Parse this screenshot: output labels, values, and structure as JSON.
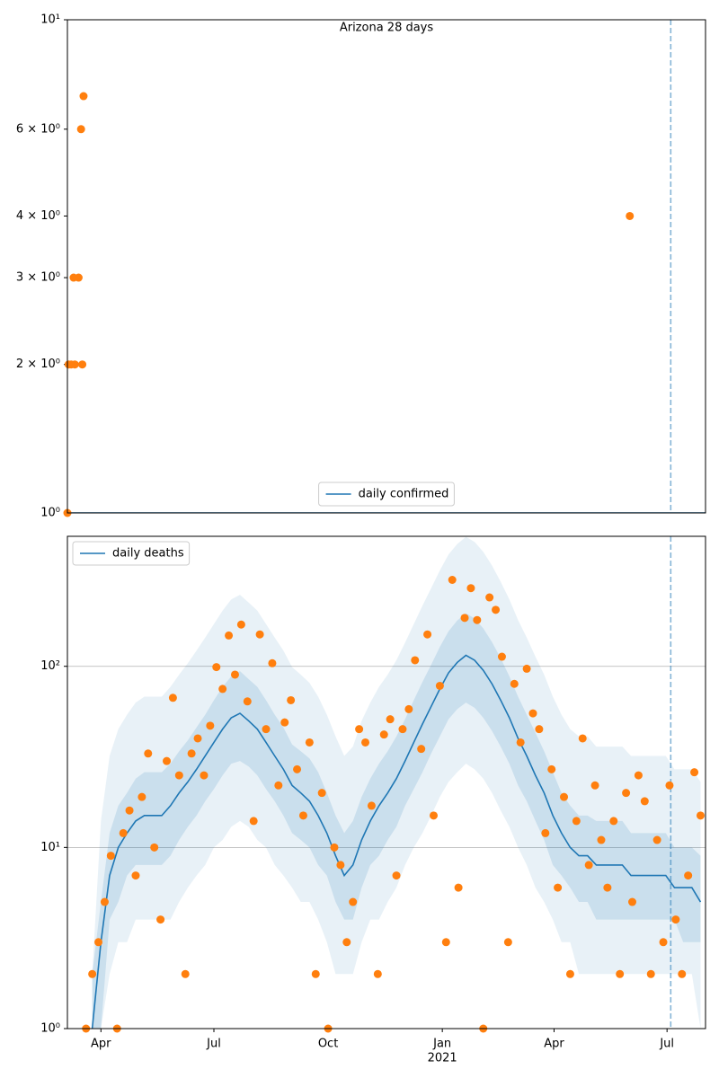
{
  "chart_data": [
    {
      "type": "line",
      "title": "Arizona 28 days",
      "yscale": "log",
      "grid": false,
      "legend": "lower center",
      "xlim": [
        "2020-03-05",
        "2021-08-01"
      ],
      "ylim": [
        1,
        10
      ],
      "yticks": [
        {
          "value": 1,
          "label": "10⁰"
        },
        {
          "value": 2,
          "label": "2 × 10⁰"
        },
        {
          "value": 3,
          "label": "3 × 10⁰"
        },
        {
          "value": 4,
          "label": "4 × 10⁰"
        },
        {
          "value": 6,
          "label": "6 × 10⁰"
        },
        {
          "value": 10,
          "label": "10¹"
        }
      ],
      "vline": "2021-07-04",
      "vline_color": "#1f77b4",
      "series": [
        {
          "name": "daily confirmed",
          "color": "#1f77b4",
          "x": [
            "2020-03-05",
            "2021-08-01"
          ],
          "values": [
            1,
            1
          ]
        }
      ],
      "points": {
        "color": "#ff7f0e",
        "x": [
          "2020-03-05",
          "2020-03-06",
          "2020-03-08",
          "2020-03-10",
          "2020-03-11",
          "2020-03-14",
          "2020-03-16",
          "2020-03-17",
          "2020-03-18",
          "2021-06-01"
        ],
        "values": [
          1,
          2,
          2,
          3,
          2,
          3,
          6,
          2,
          7,
          4
        ]
      }
    },
    {
      "type": "line",
      "yscale": "log",
      "grid": true,
      "legend": "upper left",
      "xlim": [
        "2020-03-05",
        "2021-08-01"
      ],
      "ylim": [
        1,
        522
      ],
      "yticks": [
        {
          "value": 1,
          "label": "10⁰"
        },
        {
          "value": 10,
          "label": "10¹"
        },
        {
          "value": 100,
          "label": "10²"
        }
      ],
      "xticks": [
        {
          "value": "2020-04-01",
          "label": "Apr"
        },
        {
          "value": "2020-07-01",
          "label": "Jul"
        },
        {
          "value": "2020-10-01",
          "label": "Oct"
        },
        {
          "value": "2021-01-01",
          "label": "Jan",
          "sublabel": "2021"
        },
        {
          "value": "2021-04-01",
          "label": "Apr"
        },
        {
          "value": "2021-07-01",
          "label": "Jul"
        }
      ],
      "vline": "2021-07-04",
      "vline_color": "#1f77b4",
      "series": [
        {
          "name": "daily deaths",
          "color": "#1f77b4",
          "x": [
            "2020-03-25",
            "2020-04-01",
            "2020-04-08",
            "2020-04-15",
            "2020-04-22",
            "2020-04-29",
            "2020-05-06",
            "2020-05-13",
            "2020-05-20",
            "2020-05-27",
            "2020-06-03",
            "2020-06-10",
            "2020-06-17",
            "2020-06-24",
            "2020-07-01",
            "2020-07-08",
            "2020-07-15",
            "2020-07-22",
            "2020-07-29",
            "2020-08-05",
            "2020-08-12",
            "2020-08-19",
            "2020-08-26",
            "2020-09-02",
            "2020-09-09",
            "2020-09-16",
            "2020-09-23",
            "2020-09-30",
            "2020-10-07",
            "2020-10-14",
            "2020-10-21",
            "2020-10-28",
            "2020-11-04",
            "2020-11-11",
            "2020-11-18",
            "2020-11-25",
            "2020-12-02",
            "2020-12-09",
            "2020-12-16",
            "2020-12-23",
            "2020-12-30",
            "2021-01-06",
            "2021-01-13",
            "2021-01-20",
            "2021-01-27",
            "2021-02-03",
            "2021-02-10",
            "2021-02-17",
            "2021-02-24",
            "2021-03-03",
            "2021-03-10",
            "2021-03-17",
            "2021-03-24",
            "2021-03-31",
            "2021-04-07",
            "2021-04-14",
            "2021-04-21",
            "2021-04-28",
            "2021-05-05",
            "2021-05-12",
            "2021-05-19",
            "2021-05-26",
            "2021-06-02",
            "2021-06-09",
            "2021-06-16",
            "2021-06-23",
            "2021-06-30",
            "2021-07-07",
            "2021-07-14",
            "2021-07-21",
            "2021-07-28"
          ],
          "values": [
            1,
            3,
            7,
            10,
            12,
            14,
            15,
            15,
            15,
            17,
            20,
            23,
            27,
            32,
            38,
            45,
            52,
            55,
            50,
            45,
            38,
            32,
            27,
            22,
            20,
            18,
            15,
            12,
            9,
            7,
            8,
            11,
            14,
            17,
            20,
            24,
            30,
            38,
            48,
            60,
            75,
            92,
            105,
            115,
            108,
            95,
            80,
            65,
            52,
            40,
            32,
            25,
            20,
            15,
            12,
            10,
            9,
            9,
            8,
            8,
            8,
            8,
            7,
            7,
            7,
            7,
            7,
            6,
            6,
            6,
            5
          ],
          "bands": [
            {
              "alpha": 0.1,
              "lower": [
                1,
                1,
                2,
                3,
                3,
                4,
                4,
                4,
                4,
                4,
                5,
                6,
                7,
                8,
                10,
                11,
                13,
                14,
                13,
                11,
                10,
                8,
                7,
                6,
                5,
                5,
                4,
                3,
                2,
                2,
                2,
                3,
                4,
                4,
                5,
                6,
                8,
                10,
                12,
                15,
                19,
                23,
                26,
                29,
                27,
                24,
                20,
                16,
                13,
                10,
                8,
                6,
                5,
                4,
                3,
                3,
                2,
                2,
                2,
                2,
                2,
                2,
                2,
                2,
                2,
                2,
                2,
                2,
                2,
                2,
                1
              ],
              "upper": [
                2,
                14,
                32,
                45,
                54,
                63,
                68,
                68,
                68,
                77,
                90,
                104,
                122,
                144,
                171,
                203,
                234,
                248,
                225,
                203,
                171,
                144,
                122,
                99,
                90,
                81,
                68,
                54,
                41,
                32,
                36,
                50,
                63,
                77,
                90,
                108,
                135,
                171,
                216,
                270,
                338,
                414,
                473,
                518,
                486,
                428,
                360,
                293,
                234,
                180,
                144,
                113,
                90,
                68,
                54,
                45,
                41,
                41,
                36,
                36,
                36,
                36,
                32,
                32,
                32,
                32,
                32,
                27,
                27,
                27,
                23
              ]
            },
            {
              "alpha": 0.15,
              "lower": [
                1,
                1,
                4,
                5,
                7,
                8,
                8,
                8,
                8,
                9,
                11,
                13,
                15,
                18,
                21,
                25,
                29,
                30,
                28,
                25,
                21,
                18,
                15,
                12,
                11,
                10,
                8,
                7,
                5,
                4,
                4,
                6,
                8,
                9,
                11,
                13,
                17,
                21,
                26,
                33,
                41,
                51,
                58,
                63,
                59,
                52,
                44,
                36,
                29,
                22,
                18,
                14,
                11,
                8,
                7,
                6,
                5,
                5,
                4,
                4,
                4,
                4,
                4,
                4,
                4,
                4,
                4,
                4,
                3,
                3,
                3
              ],
              "upper": [
                2,
                5,
                12,
                17,
                20,
                24,
                26,
                26,
                26,
                29,
                34,
                39,
                46,
                54,
                65,
                77,
                88,
                94,
                85,
                77,
                65,
                54,
                46,
                37,
                34,
                31,
                26,
                20,
                15,
                12,
                14,
                19,
                24,
                29,
                34,
                41,
                51,
                65,
                82,
                102,
                128,
                156,
                179,
                196,
                184,
                162,
                136,
                111,
                88,
                68,
                54,
                43,
                34,
                26,
                20,
                17,
                15,
                15,
                14,
                14,
                14,
                14,
                12,
                12,
                12,
                12,
                12,
                10,
                10,
                10,
                9
              ]
            }
          ]
        }
      ],
      "points": {
        "color": "#ff7f0e",
        "x": [
          "2020-03-20",
          "2020-03-25",
          "2020-03-30",
          "2020-04-04",
          "2020-04-09",
          "2020-04-14",
          "2020-04-19",
          "2020-04-24",
          "2020-04-29",
          "2020-05-04",
          "2020-05-09",
          "2020-05-14",
          "2020-05-19",
          "2020-05-24",
          "2020-05-29",
          "2020-06-03",
          "2020-06-08",
          "2020-06-13",
          "2020-06-18",
          "2020-06-23",
          "2020-06-28",
          "2020-07-03",
          "2020-07-08",
          "2020-07-13",
          "2020-07-18",
          "2020-07-23",
          "2020-07-28",
          "2020-08-02",
          "2020-08-07",
          "2020-08-12",
          "2020-08-17",
          "2020-08-22",
          "2020-08-27",
          "2020-09-01",
          "2020-09-06",
          "2020-09-11",
          "2020-09-16",
          "2020-09-21",
          "2020-09-26",
          "2020-10-01",
          "2020-10-06",
          "2020-10-11",
          "2020-10-16",
          "2020-10-21",
          "2020-10-26",
          "2020-10-31",
          "2020-11-05",
          "2020-11-10",
          "2020-11-15",
          "2020-11-20",
          "2020-11-25",
          "2020-11-30",
          "2020-12-05",
          "2020-12-10",
          "2020-12-15",
          "2020-12-20",
          "2020-12-25",
          "2020-12-30",
          "2021-01-04",
          "2021-01-09",
          "2021-01-14",
          "2021-01-19",
          "2021-01-24",
          "2021-01-29",
          "2021-02-03",
          "2021-02-08",
          "2021-02-13",
          "2021-02-18",
          "2021-02-23",
          "2021-02-28",
          "2021-03-05",
          "2021-03-10",
          "2021-03-15",
          "2021-03-20",
          "2021-03-25",
          "2021-03-30",
          "2021-04-04",
          "2021-04-09",
          "2021-04-14",
          "2021-04-19",
          "2021-04-24",
          "2021-04-29",
          "2021-05-04",
          "2021-05-09",
          "2021-05-14",
          "2021-05-19",
          "2021-05-24",
          "2021-05-29",
          "2021-06-03",
          "2021-06-08",
          "2021-06-13",
          "2021-06-18",
          "2021-06-23",
          "2021-06-28",
          "2021-07-03",
          "2021-07-08",
          "2021-07-13",
          "2021-07-18",
          "2021-07-23",
          "2021-07-28"
        ],
        "values": [
          1,
          2,
          3,
          5,
          9,
          1,
          12,
          16,
          7,
          19,
          33,
          10,
          4,
          30,
          67,
          25,
          2,
          33,
          40,
          25,
          47,
          99,
          75,
          148,
          90,
          170,
          64,
          14,
          150,
          45,
          104,
          22,
          49,
          65,
          27,
          15,
          38,
          2,
          20,
          1,
          10,
          8,
          3,
          5,
          45,
          38,
          17,
          2,
          42,
          51,
          7,
          45,
          58,
          108,
          35,
          150,
          15,
          78,
          3,
          300,
          6,
          185,
          270,
          180,
          1,
          240,
          205,
          113,
          3,
          80,
          38,
          97,
          55,
          45,
          12,
          27,
          6,
          19,
          2,
          14,
          40,
          8,
          22,
          11,
          6,
          14,
          2,
          20,
          5,
          25,
          18,
          2,
          11,
          3,
          22,
          4,
          2,
          7,
          26,
          15
        ]
      }
    }
  ]
}
